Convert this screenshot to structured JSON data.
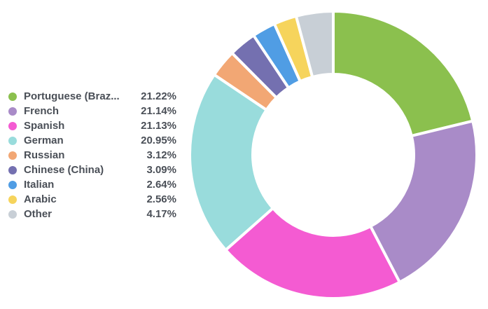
{
  "chart_data": {
    "type": "pie",
    "variant": "donut",
    "categories": [
      "Portuguese (Braz...",
      "French",
      "Spanish",
      "German",
      "Russian",
      "Chinese (China)",
      "Italian",
      "Arabic",
      "Other"
    ],
    "values": [
      21.22,
      21.14,
      21.13,
      20.95,
      3.12,
      3.09,
      2.64,
      2.56,
      4.17
    ],
    "value_labels": [
      "21.22%",
      "21.14%",
      "21.13%",
      "20.95%",
      "3.12%",
      "3.09%",
      "2.64%",
      "2.56%",
      "4.17%"
    ],
    "colors": [
      "#8bc04e",
      "#a98bc8",
      "#f45bd2",
      "#99dcdc",
      "#f2a774",
      "#7470b0",
      "#509de4",
      "#f6d45c",
      "#c8cfd6"
    ],
    "legend_position": "left",
    "start_angle_deg": 0,
    "direction": "clockwise"
  }
}
